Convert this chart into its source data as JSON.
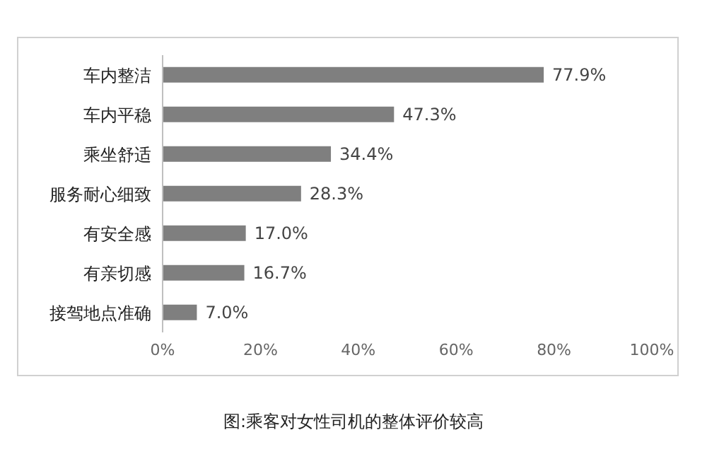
{
  "chart_data": {
    "type": "bar",
    "orientation": "horizontal",
    "categories": [
      "车内整洁",
      "车内平稳",
      "乘坐舒适",
      "服务耐心细致",
      "有安全感",
      "有亲切感",
      "接驾地点准确"
    ],
    "values": [
      77.9,
      47.3,
      34.4,
      28.3,
      17.0,
      16.7,
      7.0
    ],
    "value_labels": [
      "77.9%",
      "47.3%",
      "34.4%",
      "28.3%",
      "17.0%",
      "16.7%",
      "7.0%"
    ],
    "color": "#7f7f7f",
    "xlim": [
      0,
      100
    ],
    "xticks": [
      {
        "value": 0,
        "label": "0%"
      },
      {
        "value": 20,
        "label": "20%"
      },
      {
        "value": 40,
        "label": "40%"
      },
      {
        "value": 60,
        "label": "60%"
      },
      {
        "value": 80,
        "label": "80%"
      },
      {
        "value": 100,
        "label": "100%"
      }
    ],
    "grid": false,
    "legend": false,
    "annotations": [
      "图:乘客对女性司机的整体评价较高"
    ]
  }
}
